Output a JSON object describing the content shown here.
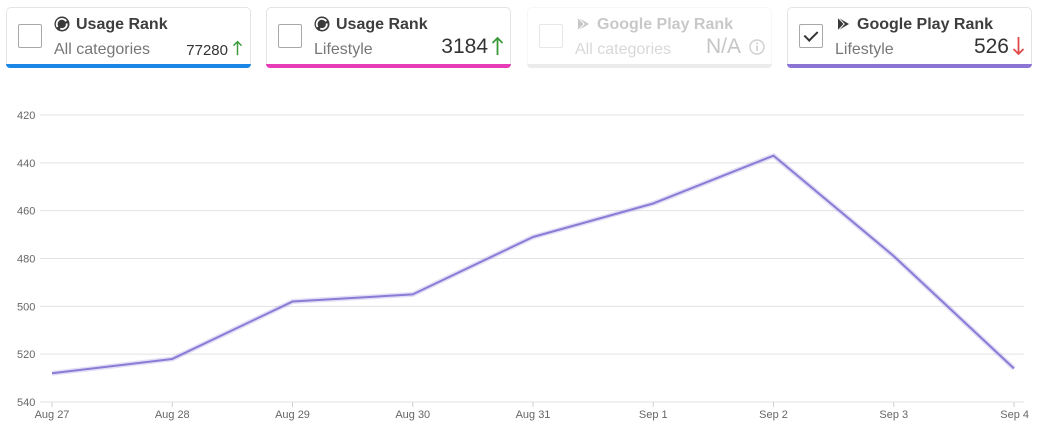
{
  "cards": [
    {
      "title": "Usage Rank",
      "subtitle": "All categories",
      "rank": "77280",
      "trend": "up",
      "checked": false,
      "disabled": false,
      "icon": "similarweb-icon",
      "accent": "#1a86e6"
    },
    {
      "title": "Usage Rank",
      "subtitle": "Lifestyle",
      "rank": "3184",
      "trend": "up",
      "checked": false,
      "disabled": false,
      "icon": "similarweb-icon",
      "accent": "#e83cb6"
    },
    {
      "title": "Google Play Rank",
      "subtitle": "All categories",
      "rank": "N/A",
      "trend": "info",
      "checked": false,
      "disabled": true,
      "icon": "google-play-icon",
      "accent": "#b8b8b8"
    },
    {
      "title": "Google Play Rank",
      "subtitle": "Lifestyle",
      "rank": "526",
      "trend": "down",
      "checked": true,
      "disabled": false,
      "icon": "google-play-icon",
      "accent": "#8b74d4"
    }
  ],
  "colors": {
    "trend_up": "#3a9a3a",
    "trend_down": "#e04a4a",
    "line": "#8b7bd6"
  },
  "chart_data": {
    "type": "line",
    "x": [
      "Aug 27",
      "Aug 28",
      "Aug 29",
      "Aug 30",
      "Aug 31",
      "Sep 1",
      "Sep 2",
      "Sep 3",
      "Sep 4"
    ],
    "series": [
      {
        "values": [
          528,
          522,
          498,
          495,
          471,
          457,
          437,
          479,
          526
        ]
      }
    ],
    "y_ticks": [
      "420",
      "440",
      "460",
      "480",
      "500",
      "520",
      "540"
    ],
    "ylim": [
      420,
      540
    ],
    "y_inverted": true,
    "grid": true,
    "legend": "none"
  }
}
